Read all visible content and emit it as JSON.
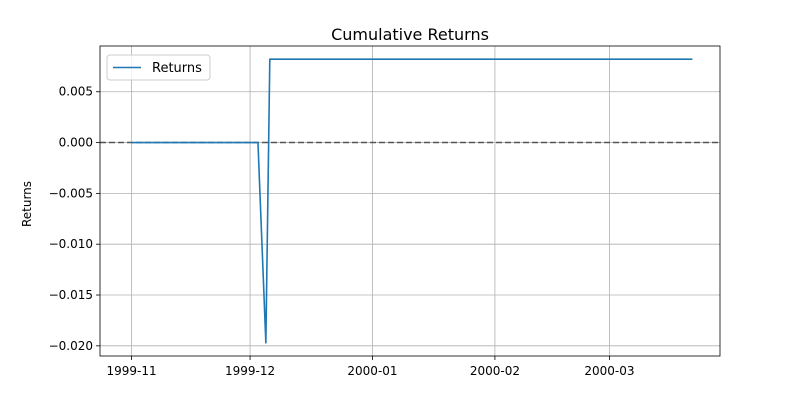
{
  "chart_data": {
    "type": "line",
    "title": "Cumulative Returns",
    "xlabel": "",
    "ylabel": "Returns",
    "x_ticks": [
      "1999-11",
      "1999-12",
      "2000-01",
      "2000-02",
      "2000-03"
    ],
    "y_ticks": [
      "0.005",
      "0.000",
      "−0.005",
      "−0.010",
      "−0.015",
      "−0.020"
    ],
    "xlim": [
      "1999-10-24",
      "2000-03-29"
    ],
    "ylim": [
      -0.021,
      0.0095
    ],
    "grid": true,
    "legend": "top-left",
    "reference_line": {
      "y": 0,
      "style": "dashed",
      "color": "#555555"
    },
    "series": [
      {
        "name": "Returns",
        "color": "#1f77b4",
        "points": [
          {
            "x": "1999-11-01",
            "y": 0.0
          },
          {
            "x": "1999-12-03",
            "y": 0.0
          },
          {
            "x": "1999-12-05",
            "y": -0.0197
          },
          {
            "x": "1999-12-06",
            "y": 0.0082
          },
          {
            "x": "2000-03-22",
            "y": 0.0082
          }
        ]
      }
    ]
  }
}
